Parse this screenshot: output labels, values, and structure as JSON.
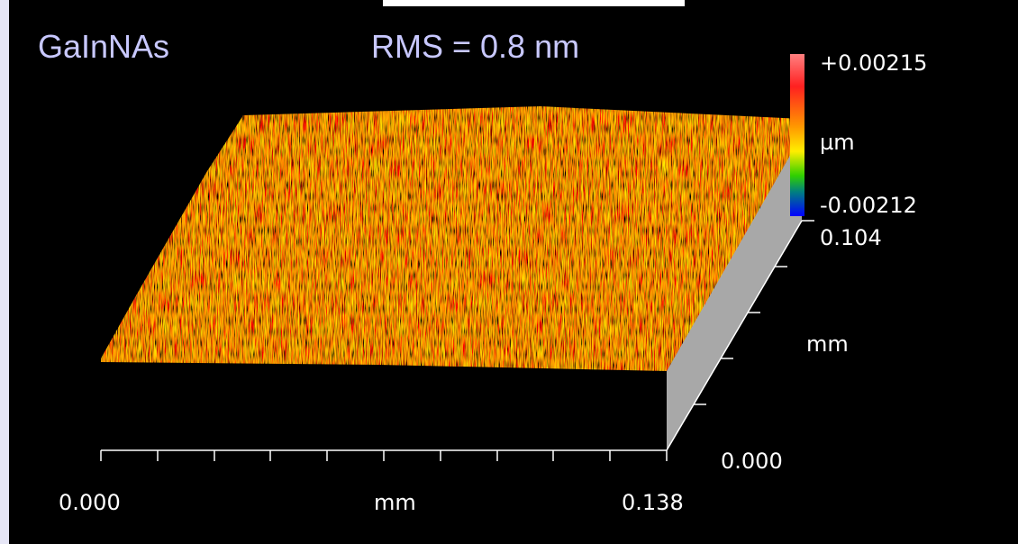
{
  "header": {
    "title": "GaInNAs",
    "rms": "RMS = 0.8 nm"
  },
  "colorbar": {
    "max": "+0.00215",
    "unit": "µm",
    "min": "-0.00212"
  },
  "y_axis": {
    "max": "0.104",
    "label": "mm",
    "min": "0.000"
  },
  "x_axis": {
    "min": "0.000",
    "label": "mm",
    "max": "0.138"
  }
}
